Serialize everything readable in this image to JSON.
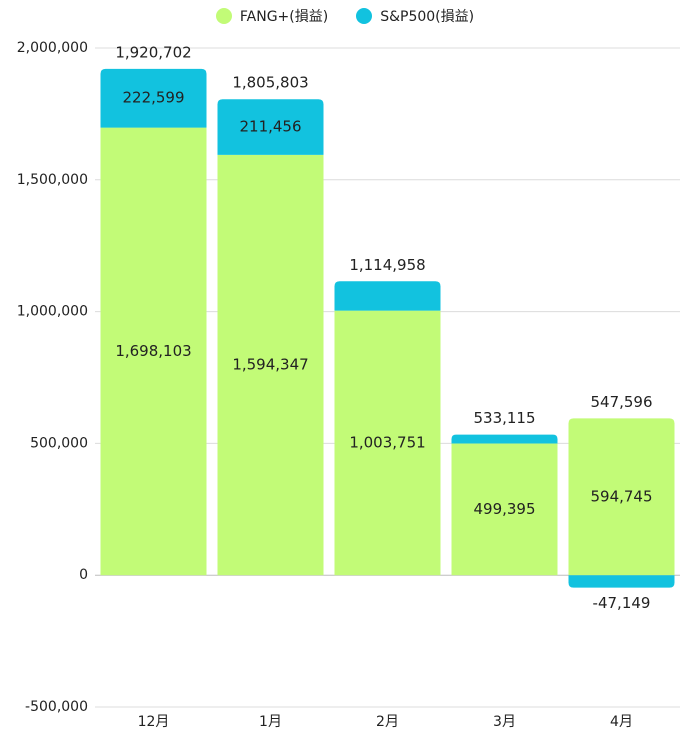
{
  "chart_data": {
    "type": "bar",
    "stacked": true,
    "categories": [
      "12月",
      "1月",
      "2月",
      "3月",
      "4月"
    ],
    "series": [
      {
        "name": "FANG+(損益)",
        "color": "#c2fb77",
        "values": [
          1698103,
          1594347,
          1003751,
          499395,
          594745
        ]
      },
      {
        "name": "S&P500(損益)",
        "color": "#12c2df",
        "values": [
          222599,
          211456,
          111207,
          33720,
          -47149
        ]
      }
    ],
    "segment_labels": {
      "FANG+(損益)": [
        "1,698,103",
        "1,594,347",
        "1,003,751",
        "499,395",
        "594,745"
      ],
      "S&P500(損益)": [
        "222,599",
        "211,456",
        "",
        "",
        "-47,149"
      ]
    },
    "totals": [
      1920702,
      1805803,
      1114958,
      533115,
      547596
    ],
    "total_labels": [
      "1,920,702",
      "1,805,803",
      "1,114,958",
      "533,115",
      "547,596"
    ],
    "ylim": [
      -500000,
      2000000
    ],
    "yticks": [
      -500000,
      0,
      500000,
      1000000,
      1500000,
      2000000
    ],
    "ytick_labels": [
      "-500,000",
      "0",
      "500,000",
      "1,000,000",
      "1,500,000",
      "2,000,000"
    ],
    "grid": true,
    "legend_position": "top"
  }
}
